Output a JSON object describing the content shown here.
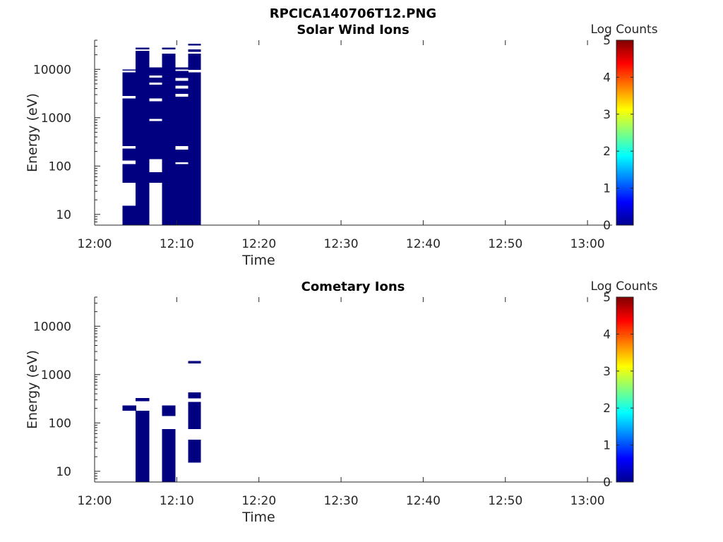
{
  "figure": {
    "title": "RPCICA140706T12.PNG"
  },
  "chart_data": [
    {
      "type": "heatmap",
      "title": "Solar Wind Ions",
      "xlabel": "Time",
      "ylabel": "Energy (eV)",
      "x_ticks": [
        "12:00",
        "12:10",
        "12:20",
        "12:30",
        "12:40",
        "12:50",
        "13:00"
      ],
      "x_tick_minutes": [
        0,
        10,
        20,
        30,
        40,
        50,
        60
      ],
      "xlim_minutes": [
        0,
        63
      ],
      "y_scale": "log",
      "y_ticks": [
        "10",
        "100",
        "1000",
        "10000"
      ],
      "y_tick_values": [
        10,
        100,
        1000,
        10000
      ],
      "ylim": [
        6,
        40000
      ],
      "colorbar": {
        "label": "Log Counts",
        "ticks": [
          "0",
          "1",
          "2",
          "3",
          "4",
          "5"
        ],
        "range": [
          0,
          5
        ],
        "colormap": "jet"
      },
      "cells": [
        {
          "t_start": 3.4,
          "t_end": 5.0,
          "e_low": 6,
          "e_high": 15,
          "value": 0
        },
        {
          "t_start": 3.4,
          "t_end": 5.0,
          "e_low": 45,
          "e_high": 110,
          "value": 0
        },
        {
          "t_start": 3.4,
          "t_end": 5.0,
          "e_low": 130,
          "e_high": 230,
          "value": 0
        },
        {
          "t_start": 3.4,
          "t_end": 5.0,
          "e_low": 260,
          "e_high": 2500,
          "value": 0
        },
        {
          "t_start": 3.4,
          "t_end": 5.0,
          "e_low": 2800,
          "e_high": 8700,
          "value": 0
        },
        {
          "t_start": 3.4,
          "t_end": 5.0,
          "e_low": 9500,
          "e_high": 10000,
          "value": 0
        },
        {
          "t_start": 5.0,
          "t_end": 6.6,
          "e_low": 6,
          "e_high": 24000,
          "value": 0
        },
        {
          "t_start": 5.0,
          "t_end": 6.6,
          "e_low": 26000,
          "e_high": 28000,
          "value": 0
        },
        {
          "t_start": 6.6,
          "t_end": 8.2,
          "e_low": 45,
          "e_high": 75,
          "value": 0
        },
        {
          "t_start": 6.6,
          "t_end": 8.2,
          "e_low": 140,
          "e_high": 850,
          "value": 0
        },
        {
          "t_start": 6.6,
          "t_end": 8.2,
          "e_low": 950,
          "e_high": 2200,
          "value": 0
        },
        {
          "t_start": 6.6,
          "t_end": 8.2,
          "e_low": 2500,
          "e_high": 4800,
          "value": 0
        },
        {
          "t_start": 6.6,
          "t_end": 8.2,
          "e_low": 5300,
          "e_high": 6700,
          "value": 0
        },
        {
          "t_start": 6.6,
          "t_end": 8.2,
          "e_low": 7500,
          "e_high": 11000,
          "value": 0
        },
        {
          "t_start": 8.2,
          "t_end": 9.8,
          "e_low": 6,
          "e_high": 21000,
          "value": 0
        },
        {
          "t_start": 8.2,
          "t_end": 9.8,
          "e_low": 26000,
          "e_high": 28000,
          "value": 0
        },
        {
          "t_start": 9.8,
          "t_end": 11.4,
          "e_low": 6,
          "e_high": 110,
          "value": 0
        },
        {
          "t_start": 9.8,
          "t_end": 11.4,
          "e_low": 120,
          "e_high": 220,
          "value": 0
        },
        {
          "t_start": 9.8,
          "t_end": 11.4,
          "e_low": 260,
          "e_high": 2700,
          "value": 0
        },
        {
          "t_start": 9.8,
          "t_end": 11.4,
          "e_low": 3100,
          "e_high": 4000,
          "value": 0
        },
        {
          "t_start": 9.8,
          "t_end": 11.4,
          "e_low": 4600,
          "e_high": 5800,
          "value": 0
        },
        {
          "t_start": 9.8,
          "t_end": 11.4,
          "e_low": 6600,
          "e_high": 9200,
          "value": 0
        },
        {
          "t_start": 9.8,
          "t_end": 11.4,
          "e_low": 10000,
          "e_high": 11000,
          "value": 0
        },
        {
          "t_start": 11.4,
          "t_end": 12.9,
          "e_low": 6,
          "e_high": 8700,
          "value": 0
        },
        {
          "t_start": 11.4,
          "t_end": 12.9,
          "e_low": 9800,
          "e_high": 21000,
          "value": 0
        },
        {
          "t_start": 11.4,
          "t_end": 12.9,
          "e_low": 23000,
          "e_high": 26000,
          "value": 0
        },
        {
          "t_start": 11.4,
          "t_end": 12.9,
          "e_low": 31000,
          "e_high": 34000,
          "value": 0
        }
      ]
    },
    {
      "type": "heatmap",
      "title": "Cometary Ions",
      "xlabel": "Time",
      "ylabel": "Energy (eV)",
      "x_ticks": [
        "12:00",
        "12:10",
        "12:20",
        "12:30",
        "12:40",
        "12:50",
        "13:00"
      ],
      "x_tick_minutes": [
        0,
        10,
        20,
        30,
        40,
        50,
        60
      ],
      "xlim_minutes": [
        0,
        63
      ],
      "y_scale": "log",
      "y_ticks": [
        "10",
        "100",
        "1000",
        "10000"
      ],
      "y_tick_values": [
        10,
        100,
        1000,
        10000
      ],
      "ylim": [
        6,
        40000
      ],
      "colorbar": {
        "label": "Log Counts",
        "ticks": [
          "0",
          "1",
          "2",
          "3",
          "4",
          "5"
        ],
        "range": [
          0,
          5
        ],
        "colormap": "jet"
      },
      "cells": [
        {
          "t_start": 3.4,
          "t_end": 5.0,
          "e_low": 180,
          "e_high": 230,
          "value": 0
        },
        {
          "t_start": 5.0,
          "t_end": 6.6,
          "e_low": 6,
          "e_high": 180,
          "value": 0
        },
        {
          "t_start": 5.0,
          "t_end": 6.6,
          "e_low": 280,
          "e_high": 330,
          "value": 0
        },
        {
          "t_start": 8.2,
          "t_end": 9.8,
          "e_low": 6,
          "e_high": 75,
          "value": 0
        },
        {
          "t_start": 8.2,
          "t_end": 9.8,
          "e_low": 140,
          "e_high": 230,
          "value": 0
        },
        {
          "t_start": 11.4,
          "t_end": 12.9,
          "e_low": 15,
          "e_high": 45,
          "value": 0
        },
        {
          "t_start": 11.4,
          "t_end": 12.9,
          "e_low": 75,
          "e_high": 270,
          "value": 0
        },
        {
          "t_start": 11.4,
          "t_end": 12.9,
          "e_low": 320,
          "e_high": 430,
          "value": 0
        },
        {
          "t_start": 11.4,
          "t_end": 12.9,
          "e_low": 1700,
          "e_high": 1900,
          "value": 0
        }
      ]
    }
  ]
}
